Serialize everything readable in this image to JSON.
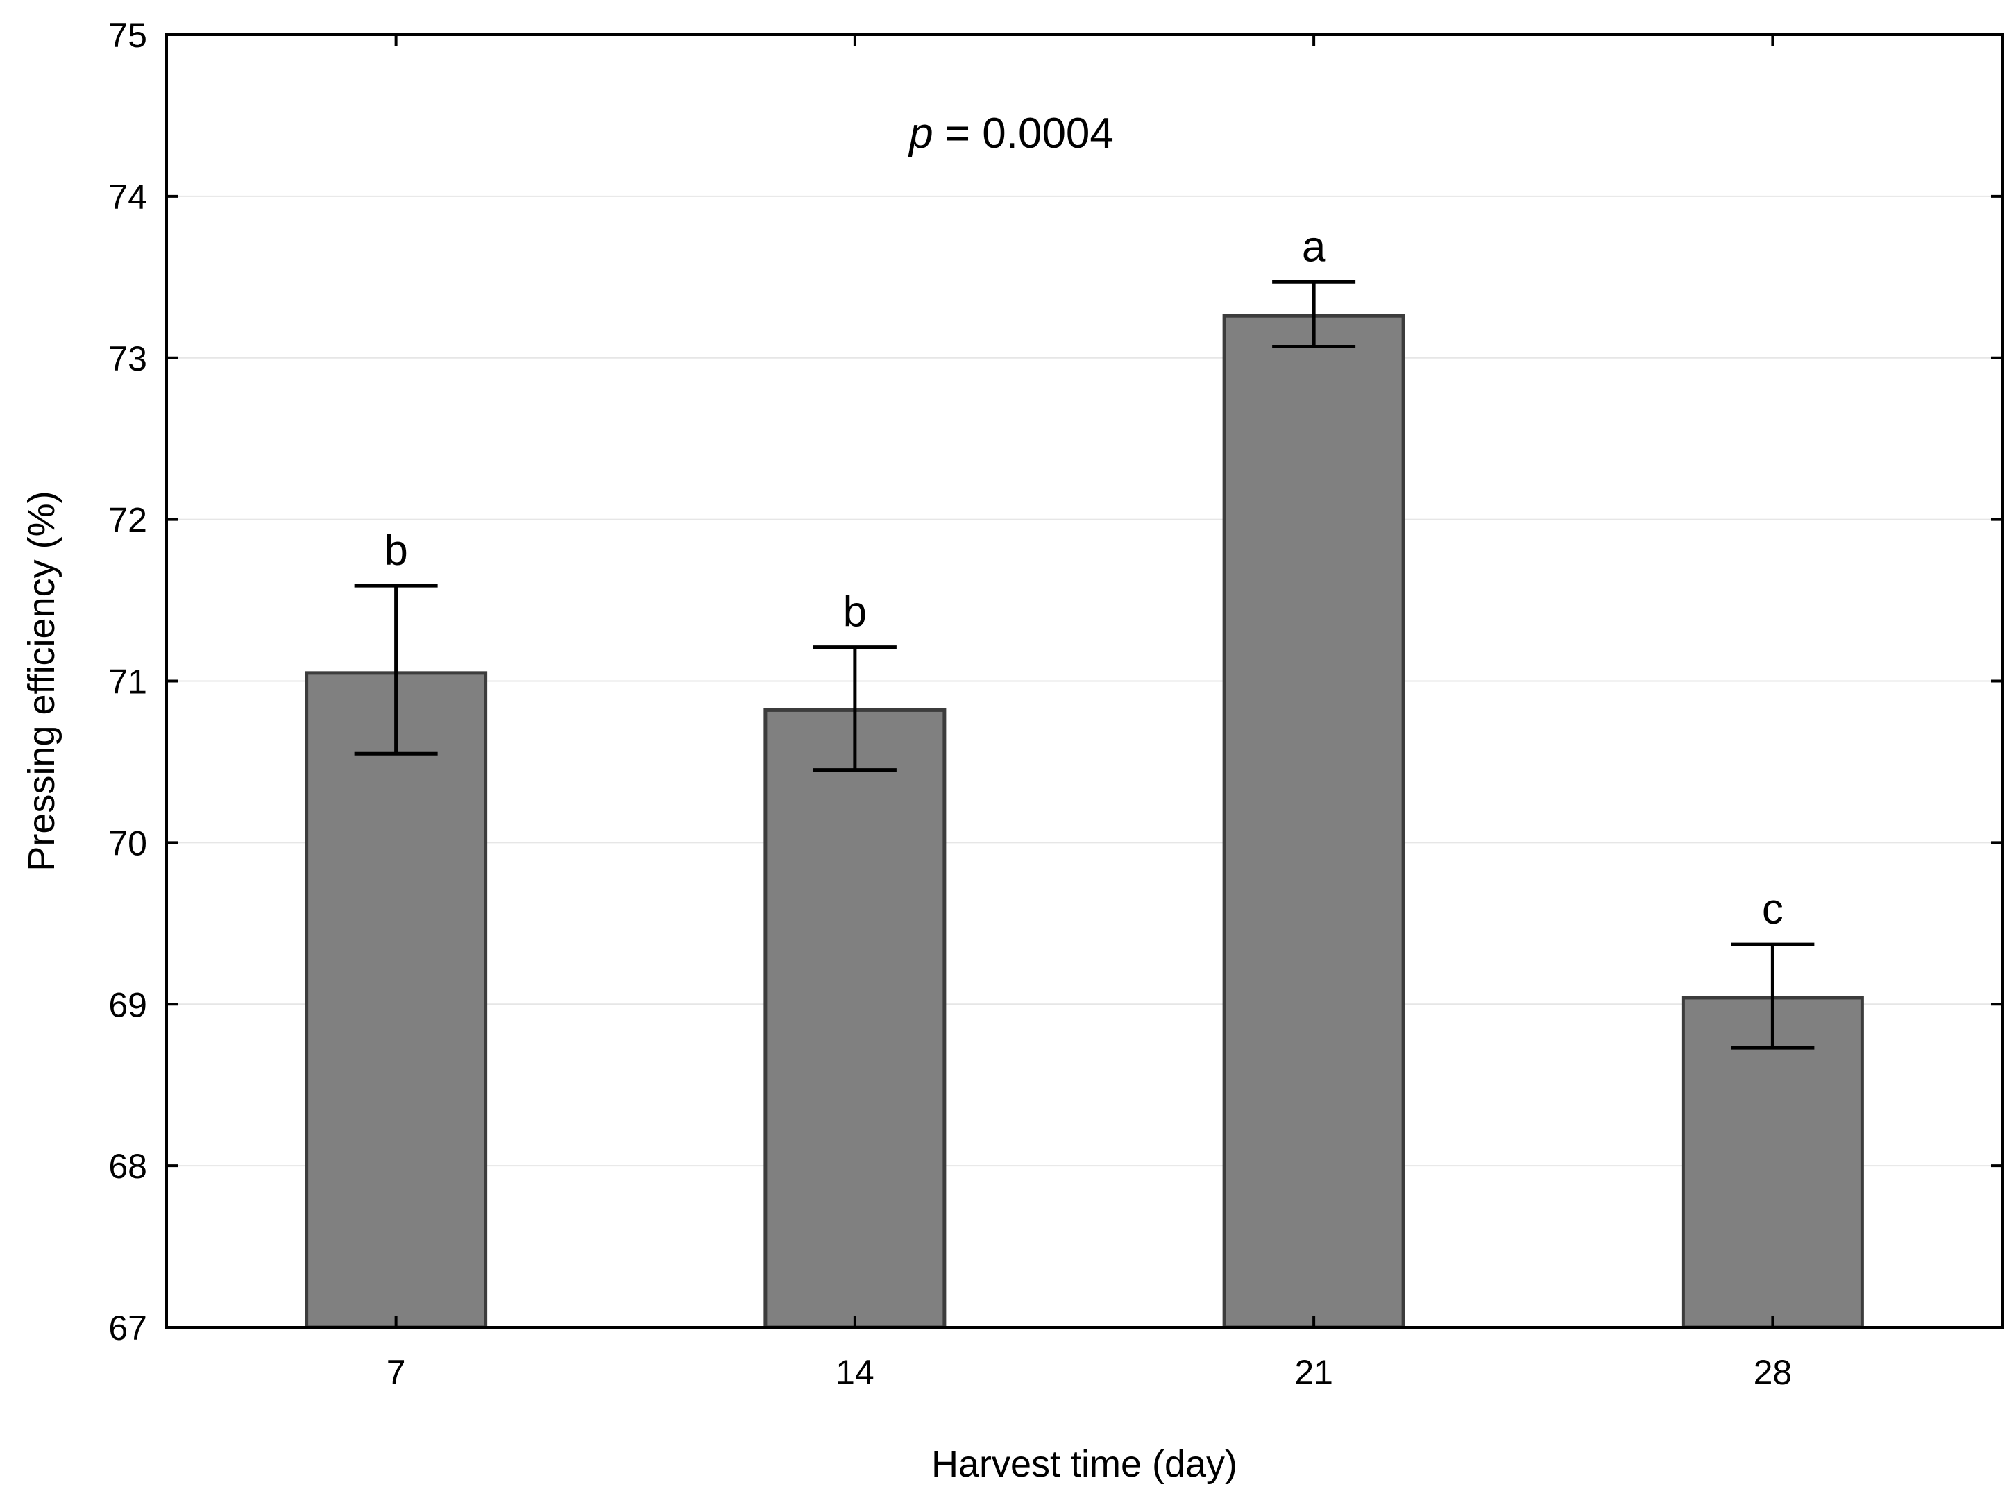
{
  "chart_data": {
    "type": "bar",
    "title": "",
    "xlabel": "Harvest time (day)",
    "ylabel": "Pressing efficiency (%)",
    "categories": [
      "7",
      "14",
      "21",
      "28"
    ],
    "values": [
      71.05,
      70.82,
      73.26,
      69.04
    ],
    "error_low": [
      70.55,
      70.45,
      73.07,
      68.73
    ],
    "error_high": [
      71.59,
      71.21,
      73.47,
      69.37
    ],
    "significance_letters": [
      "b",
      "b",
      "a",
      "c"
    ],
    "ylim": [
      67,
      75
    ],
    "yticks": [
      "67",
      "68",
      "69",
      "70",
      "71",
      "72",
      "73",
      "74",
      "75"
    ],
    "grid": true,
    "annotation": {
      "variable": "p",
      "text": " = 0.0004"
    },
    "colors": {
      "bar_fill": "#808080",
      "bar_stroke": "#3c3c3c",
      "axis": "#000000",
      "grid": "#e6e6e6"
    }
  }
}
